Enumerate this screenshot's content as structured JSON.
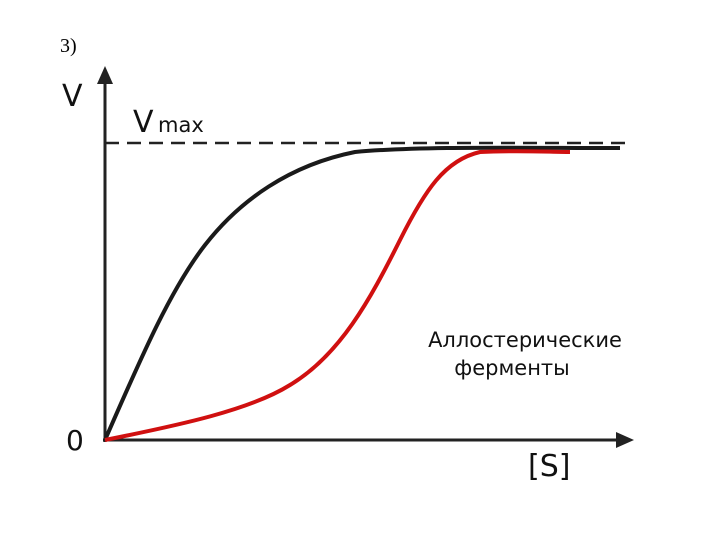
{
  "label": "3)",
  "axes": {
    "y_label": "V",
    "x_label": "[S]",
    "origin": "0"
  },
  "vmax": {
    "symbol": "V",
    "subscript": "max"
  },
  "annotation": {
    "line1": "Аллостерические",
    "line2": "ферменты"
  }
}
